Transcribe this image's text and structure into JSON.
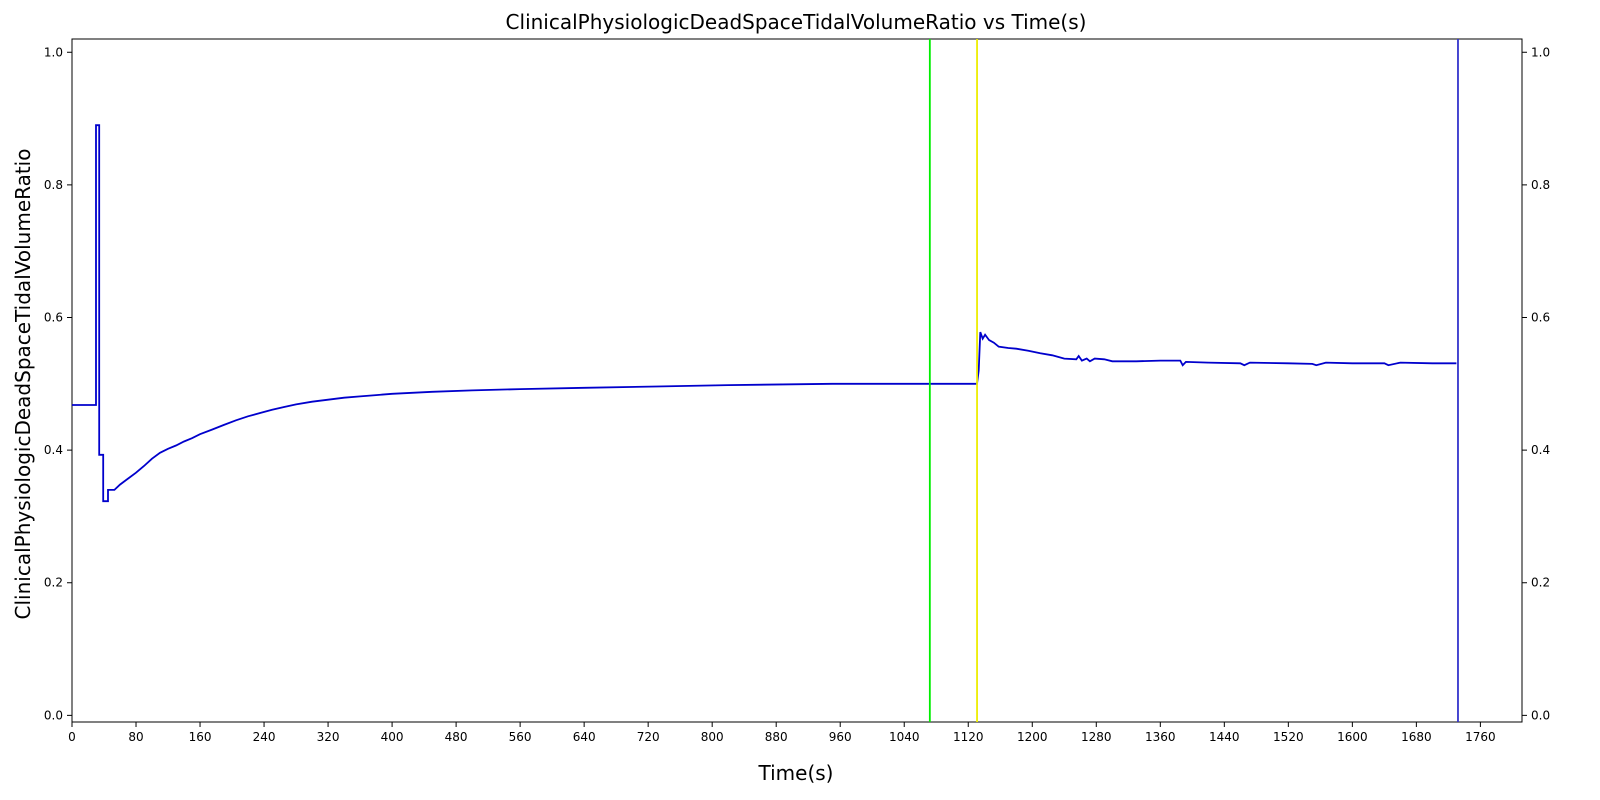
{
  "chart_data": {
    "type": "line",
    "title": "ClinicalPhysiologicDeadSpaceTidalVolumeRatio vs Time(s)",
    "xlabel": "Time(s)",
    "ylabel": "ClinicalPhysiologicDeadSpaceTidalVolumeRatio",
    "xlim": [
      0,
      1812
    ],
    "ylim": [
      -0.01,
      1.02
    ],
    "x_ticks": [
      "0",
      "80",
      "160",
      "240",
      "320",
      "400",
      "480",
      "560",
      "640",
      "720",
      "800",
      "880",
      "960",
      "1040",
      "1120",
      "1200",
      "1280",
      "1360",
      "1440",
      "1520",
      "1600",
      "1680",
      "1760"
    ],
    "y_ticks": [
      "0.0",
      "0.2",
      "0.4",
      "0.6",
      "0.8",
      "1.0"
    ],
    "right_y_ticks": [
      "0.0",
      "0.2",
      "0.4",
      "0.6",
      "0.8",
      "1.0"
    ],
    "grid": false,
    "series": [
      {
        "color": "#0000cc",
        "points": [
          [
            0,
            0.468
          ],
          [
            30,
            0.468
          ],
          [
            30,
            0.89
          ],
          [
            34,
            0.89
          ],
          [
            34,
            0.393
          ],
          [
            39,
            0.393
          ],
          [
            39,
            0.323
          ],
          [
            45,
            0.323
          ],
          [
            45,
            0.34
          ],
          [
            53,
            0.34
          ],
          [
            60,
            0.348
          ],
          [
            70,
            0.357
          ],
          [
            80,
            0.366
          ],
          [
            90,
            0.376
          ],
          [
            100,
            0.387
          ],
          [
            110,
            0.396
          ],
          [
            120,
            0.402
          ],
          [
            130,
            0.407
          ],
          [
            140,
            0.413
          ],
          [
            150,
            0.418
          ],
          [
            160,
            0.424
          ],
          [
            175,
            0.431
          ],
          [
            190,
            0.438
          ],
          [
            205,
            0.445
          ],
          [
            220,
            0.451
          ],
          [
            235,
            0.456
          ],
          [
            250,
            0.461
          ],
          [
            265,
            0.465
          ],
          [
            280,
            0.469
          ],
          [
            300,
            0.473
          ],
          [
            320,
            0.476
          ],
          [
            340,
            0.479
          ],
          [
            360,
            0.481
          ],
          [
            380,
            0.483
          ],
          [
            400,
            0.485
          ],
          [
            450,
            0.488
          ],
          [
            500,
            0.49
          ],
          [
            560,
            0.492
          ],
          [
            640,
            0.494
          ],
          [
            730,
            0.496
          ],
          [
            820,
            0.498
          ],
          [
            950,
            0.5
          ],
          [
            1131,
            0.5
          ],
          [
            1133,
            0.52
          ],
          [
            1135,
            0.578
          ],
          [
            1138,
            0.568
          ],
          [
            1141,
            0.574
          ],
          [
            1146,
            0.566
          ],
          [
            1152,
            0.562
          ],
          [
            1158,
            0.556
          ],
          [
            1170,
            0.554
          ],
          [
            1180,
            0.553
          ],
          [
            1195,
            0.55
          ],
          [
            1210,
            0.546
          ],
          [
            1225,
            0.543
          ],
          [
            1240,
            0.538
          ],
          [
            1255,
            0.537
          ],
          [
            1258,
            0.542
          ],
          [
            1262,
            0.535
          ],
          [
            1268,
            0.538
          ],
          [
            1272,
            0.534
          ],
          [
            1278,
            0.538
          ],
          [
            1290,
            0.537
          ],
          [
            1300,
            0.534
          ],
          [
            1330,
            0.534
          ],
          [
            1360,
            0.535
          ],
          [
            1385,
            0.535
          ],
          [
            1388,
            0.528
          ],
          [
            1392,
            0.533
          ],
          [
            1420,
            0.532
          ],
          [
            1460,
            0.531
          ],
          [
            1465,
            0.528
          ],
          [
            1472,
            0.532
          ],
          [
            1520,
            0.531
          ],
          [
            1550,
            0.53
          ],
          [
            1555,
            0.528
          ],
          [
            1567,
            0.532
          ],
          [
            1600,
            0.531
          ],
          [
            1640,
            0.531
          ],
          [
            1645,
            0.528
          ],
          [
            1660,
            0.532
          ],
          [
            1700,
            0.531
          ],
          [
            1730,
            0.531
          ]
        ]
      }
    ],
    "vertical_lines": [
      {
        "x": 1072,
        "color": "#00ee00"
      },
      {
        "x": 1131,
        "color": "#eeee00"
      },
      {
        "x": 1732,
        "color": "#3333cc"
      }
    ]
  }
}
